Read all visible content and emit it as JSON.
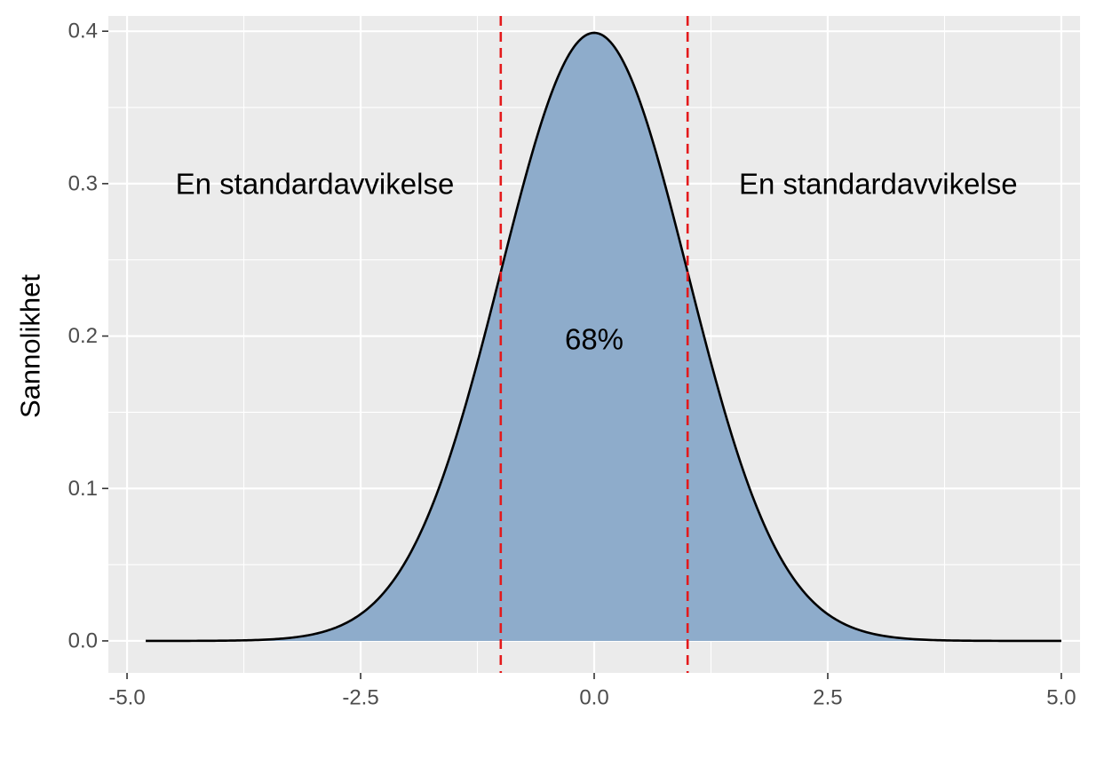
{
  "chart_data": {
    "type": "area",
    "title": "",
    "xlabel": "",
    "ylabel": "Sannolikhet",
    "xlim": [
      -5.2,
      5.2
    ],
    "ylim": [
      -0.021,
      0.41
    ],
    "x_ticks": [
      -5.0,
      -2.5,
      0.0,
      2.5,
      5.0
    ],
    "x_tick_labels": [
      "-5.0",
      "-2.5",
      "0.0",
      "2.5",
      "5.0"
    ],
    "y_ticks": [
      0.0,
      0.1,
      0.2,
      0.3,
      0.4
    ],
    "y_tick_labels": [
      "0.0",
      "0.1",
      "0.2",
      "0.3",
      "0.4"
    ],
    "grid": true,
    "distribution": {
      "name": "normal",
      "mean": 0,
      "sd": 1
    },
    "curve_x_range": [
      -4.8,
      5.0
    ],
    "vlines": [
      {
        "x": -1,
        "style": "dashed",
        "color": "#e41a1c"
      },
      {
        "x": 1,
        "style": "dashed",
        "color": "#e41a1c"
      }
    ],
    "annotations": [
      {
        "text": "En standardavvikelse",
        "x": -2.99,
        "y": 0.3
      },
      {
        "text": "En standardavvikelse",
        "x": 3.04,
        "y": 0.3
      },
      {
        "text": "68%",
        "x": 0.0,
        "y": 0.198
      }
    ],
    "colors": {
      "panel": "#ebebeb",
      "grid": "#ffffff",
      "fill": "#8eaccb",
      "line": "#000000",
      "vline": "#e41a1c"
    }
  }
}
